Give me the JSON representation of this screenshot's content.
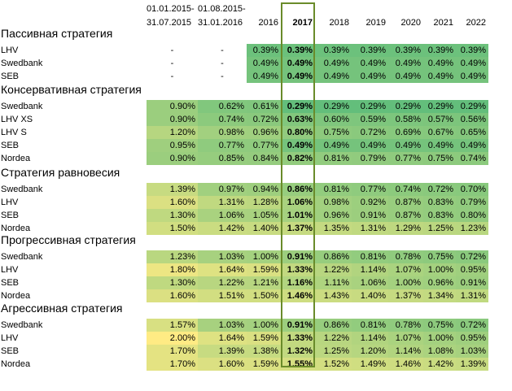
{
  "columns": [
    {
      "line1": "01.01.2015-",
      "line2": "31.07.2015"
    },
    {
      "line1": "01.08.2015-",
      "line2": "31.01.2016"
    },
    {
      "line1": "",
      "line2": "2016"
    },
    {
      "line1": "",
      "line2": "2017"
    },
    {
      "line1": "",
      "line2": "2018"
    },
    {
      "line1": "",
      "line2": "2019"
    },
    {
      "line1": "",
      "line2": "2020"
    },
    {
      "line1": "",
      "line2": "2021"
    },
    {
      "line1": "",
      "line2": "2022"
    }
  ],
  "highlighted_column": "2017",
  "sections": [
    {
      "title": "Пассивная стратегия",
      "rows": [
        {
          "name": "LHV",
          "values": [
            "-",
            "-",
            "0.39%",
            "0.39%",
            "0.39%",
            "0.39%",
            "0.39%",
            "0.39%",
            "0.39%"
          ]
        },
        {
          "name": "Swedbank",
          "values": [
            "-",
            "-",
            "0.49%",
            "0.49%",
            "0.49%",
            "0.49%",
            "0.49%",
            "0.49%",
            "0.49%"
          ]
        },
        {
          "name": "SEB",
          "values": [
            "-",
            "-",
            "0.49%",
            "0.49%",
            "0.49%",
            "0.49%",
            "0.49%",
            "0.49%",
            "0.49%"
          ]
        }
      ]
    },
    {
      "title": "Консервативная стратегия",
      "rows": [
        {
          "name": "Swedbank",
          "values": [
            "0.90%",
            "0.62%",
            "0.61%",
            "0.29%",
            "0.29%",
            "0.29%",
            "0.29%",
            "0.29%",
            "0.29%"
          ]
        },
        {
          "name": "LHV XS",
          "values": [
            "0.90%",
            "0.74%",
            "0.72%",
            "0.63%",
            "0.60%",
            "0.59%",
            "0.58%",
            "0.57%",
            "0.56%"
          ]
        },
        {
          "name": "LHV S",
          "values": [
            "1.20%",
            "0.98%",
            "0.96%",
            "0.80%",
            "0.75%",
            "0.72%",
            "0.69%",
            "0.67%",
            "0.65%"
          ]
        },
        {
          "name": "SEB",
          "values": [
            "0.95%",
            "0.77%",
            "0.77%",
            "0.49%",
            "0.49%",
            "0.49%",
            "0.49%",
            "0.49%",
            "0.49%"
          ]
        },
        {
          "name": "Nordea",
          "values": [
            "0.90%",
            "0.85%",
            "0.84%",
            "0.82%",
            "0.81%",
            "0.79%",
            "0.77%",
            "0.75%",
            "0.74%"
          ]
        }
      ]
    },
    {
      "title": "Стратегия равновесия",
      "rows": [
        {
          "name": "Swedbank",
          "values": [
            "1.39%",
            "0.97%",
            "0.94%",
            "0.86%",
            "0.81%",
            "0.77%",
            "0.74%",
            "0.72%",
            "0.70%"
          ]
        },
        {
          "name": "LHV",
          "values": [
            "1.60%",
            "1.31%",
            "1.28%",
            "1.06%",
            "0.98%",
            "0.92%",
            "0.87%",
            "0.83%",
            "0.79%"
          ]
        },
        {
          "name": "SEB",
          "values": [
            "1.30%",
            "1.06%",
            "1.05%",
            "1.01%",
            "0.96%",
            "0.91%",
            "0.87%",
            "0.83%",
            "0.80%"
          ]
        },
        {
          "name": "Nordea",
          "values": [
            "1.50%",
            "1.42%",
            "1.40%",
            "1.37%",
            "1.35%",
            "1.31%",
            "1.29%",
            "1.25%",
            "1.23%"
          ]
        }
      ]
    },
    {
      "title": "Прогрессивная стратегия",
      "rows": [
        {
          "name": "Swedbank",
          "values": [
            "1.23%",
            "1.03%",
            "1.00%",
            "0.91%",
            "0.86%",
            "0.81%",
            "0.78%",
            "0.75%",
            "0.72%"
          ]
        },
        {
          "name": "LHV",
          "values": [
            "1.80%",
            "1.64%",
            "1.59%",
            "1.33%",
            "1.22%",
            "1.14%",
            "1.07%",
            "1.00%",
            "0.95%"
          ]
        },
        {
          "name": "SEB",
          "values": [
            "1.30%",
            "1.22%",
            "1.21%",
            "1.16%",
            "1.11%",
            "1.06%",
            "1.00%",
            "0.96%",
            "0.91%"
          ]
        },
        {
          "name": "Nordea",
          "values": [
            "1.60%",
            "1.51%",
            "1.50%",
            "1.46%",
            "1.43%",
            "1.40%",
            "1.37%",
            "1.34%",
            "1.31%"
          ]
        }
      ]
    },
    {
      "title": "Агрессивная стратегия",
      "rows": [
        {
          "name": "Swedbank",
          "values": [
            "1.57%",
            "1.03%",
            "1.00%",
            "0.91%",
            "0.86%",
            "0.81%",
            "0.78%",
            "0.75%",
            "0.72%"
          ]
        },
        {
          "name": "LHV",
          "values": [
            "2.00%",
            "1.64%",
            "1.59%",
            "1.33%",
            "1.22%",
            "1.14%",
            "1.07%",
            "1.00%",
            "0.95%"
          ]
        },
        {
          "name": "SEB",
          "values": [
            "1.70%",
            "1.39%",
            "1.38%",
            "1.32%",
            "1.25%",
            "1.20%",
            "1.14%",
            "1.08%",
            "1.03%"
          ]
        },
        {
          "name": "Nordea",
          "values": [
            "1.70%",
            "1.60%",
            "1.59%",
            "1.55%",
            "1.52%",
            "1.49%",
            "1.46%",
            "1.42%",
            "1.39%"
          ]
        }
      ]
    }
  ],
  "colors": {
    "scale_low": "#63be7b",
    "scale_high": "#ffeb84",
    "highlight_border": "#6a8b2a"
  }
}
